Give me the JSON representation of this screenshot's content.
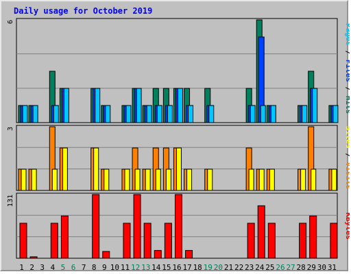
{
  "chart_data": {
    "type": "bar",
    "title": "Daily usage for October 2019",
    "categories": [
      "1",
      "2",
      "3",
      "4",
      "5",
      "6",
      "7",
      "8",
      "9",
      "10",
      "11",
      "12",
      "13",
      "14",
      "15",
      "16",
      "17",
      "18",
      "19",
      "20",
      "21",
      "22",
      "23",
      "24",
      "25",
      "26",
      "27",
      "28",
      "29",
      "30",
      "31"
    ],
    "weekend_days": [
      "5",
      "6",
      "12",
      "13",
      "19",
      "20",
      "26",
      "27"
    ],
    "panels": [
      {
        "id": "hits",
        "scale_label": "6",
        "ylim": [
          0,
          6
        ],
        "legend": [
          "Pages",
          "Files",
          "Hits"
        ],
        "series": [
          {
            "name": "Hits",
            "values": [
              1,
              1,
              0,
              3,
              2,
              0,
              0,
              2,
              1,
              0,
              1,
              2,
              1,
              2,
              2,
              2,
              2,
              0,
              2,
              0,
              0,
              0,
              2,
              6,
              1,
              0,
              0,
              1,
              3,
              0,
              1
            ]
          },
          {
            "name": "Files",
            "values": [
              1,
              1,
              0,
              1,
              2,
              0,
              0,
              2,
              1,
              0,
              1,
              2,
              1,
              1,
              1,
              2,
              1,
              0,
              1,
              0,
              0,
              0,
              1,
              5,
              1,
              0,
              0,
              1,
              2,
              0,
              1
            ]
          },
          {
            "name": "Pages",
            "values": [
              1,
              1,
              0,
              1,
              2,
              0,
              0,
              2,
              1,
              0,
              1,
              2,
              1,
              1,
              1,
              2,
              1,
              0,
              1,
              0,
              0,
              0,
              1,
              1,
              1,
              0,
              0,
              1,
              2,
              0,
              1
            ]
          }
        ]
      },
      {
        "id": "visits",
        "scale_label": "3",
        "ylim": [
          0,
          3
        ],
        "legend": [
          "Sites",
          "Visits"
        ],
        "series": [
          {
            "name": "Visits",
            "values": [
              1,
              1,
              0,
              3,
              2,
              0,
              0,
              2,
              1,
              0,
              1,
              2,
              1,
              2,
              2,
              2,
              1,
              0,
              1,
              0,
              0,
              0,
              2,
              1,
              1,
              0,
              0,
              1,
              3,
              0,
              1
            ]
          },
          {
            "name": "Sites",
            "values": [
              1,
              1,
              0,
              1,
              2,
              0,
              0,
              2,
              1,
              0,
              1,
              1,
              1,
              1,
              1,
              2,
              1,
              0,
              1,
              0,
              0,
              0,
              1,
              1,
              1,
              0,
              0,
              1,
              1,
              0,
              1
            ]
          }
        ]
      },
      {
        "id": "kbytes",
        "scale_label": "131",
        "ylim": [
          0,
          131
        ],
        "legend": [
          "KBytes"
        ],
        "series": [
          {
            "name": "KBytes",
            "values": [
              72,
              3,
              0,
              72,
              87,
              0,
              0,
              131,
              14,
              0,
              72,
              131,
              72,
              16,
              72,
              131,
              16,
              0,
              0,
              0,
              0,
              0,
              72,
              108,
              72,
              0,
              0,
              72,
              87,
              0,
              72
            ]
          }
        ]
      }
    ]
  },
  "colors": {
    "title": "#0000ff",
    "hits": "#00805c",
    "files": "#0040ff",
    "pages": "#00c8ff",
    "visits": "#ff8000",
    "sites": "#ffff00",
    "kbytes": "#ff0000",
    "weekday": "#000000",
    "weekend": "#00805c",
    "plot_bg": "#c0c0c0",
    "grid": "#808080"
  }
}
